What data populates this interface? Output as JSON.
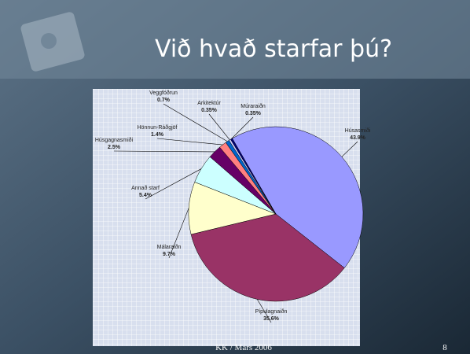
{
  "title": "Við hvað starfar þú?",
  "footer": "KK / Mars 2006",
  "page_number": "8",
  "chart_data": {
    "type": "pie",
    "categories": [
      "Húsasmiði",
      "Pípulagnaiðn",
      "Málaraiðn",
      "Annað starf",
      "Húsgagnasmiði",
      "Hönnun-Ráðgjöf",
      "Veggfóðrun",
      "Arkitektúr",
      "Múraraiðn"
    ],
    "values": [
      43.9,
      35.6,
      9.7,
      5.4,
      2.5,
      1.4,
      0.7,
      0.35,
      0.35
    ],
    "value_labels": [
      "43.9%",
      "35.6%",
      "9.7%",
      "5.4%",
      "2.5%",
      "1.4%",
      "0.7%",
      "0.35%",
      "0.35%"
    ],
    "colors": [
      "#9999ff",
      "#993366",
      "#ffffcc",
      "#ccffff",
      "#660066",
      "#ff8080",
      "#0066cc",
      "#ccccff",
      "#000080"
    ]
  }
}
